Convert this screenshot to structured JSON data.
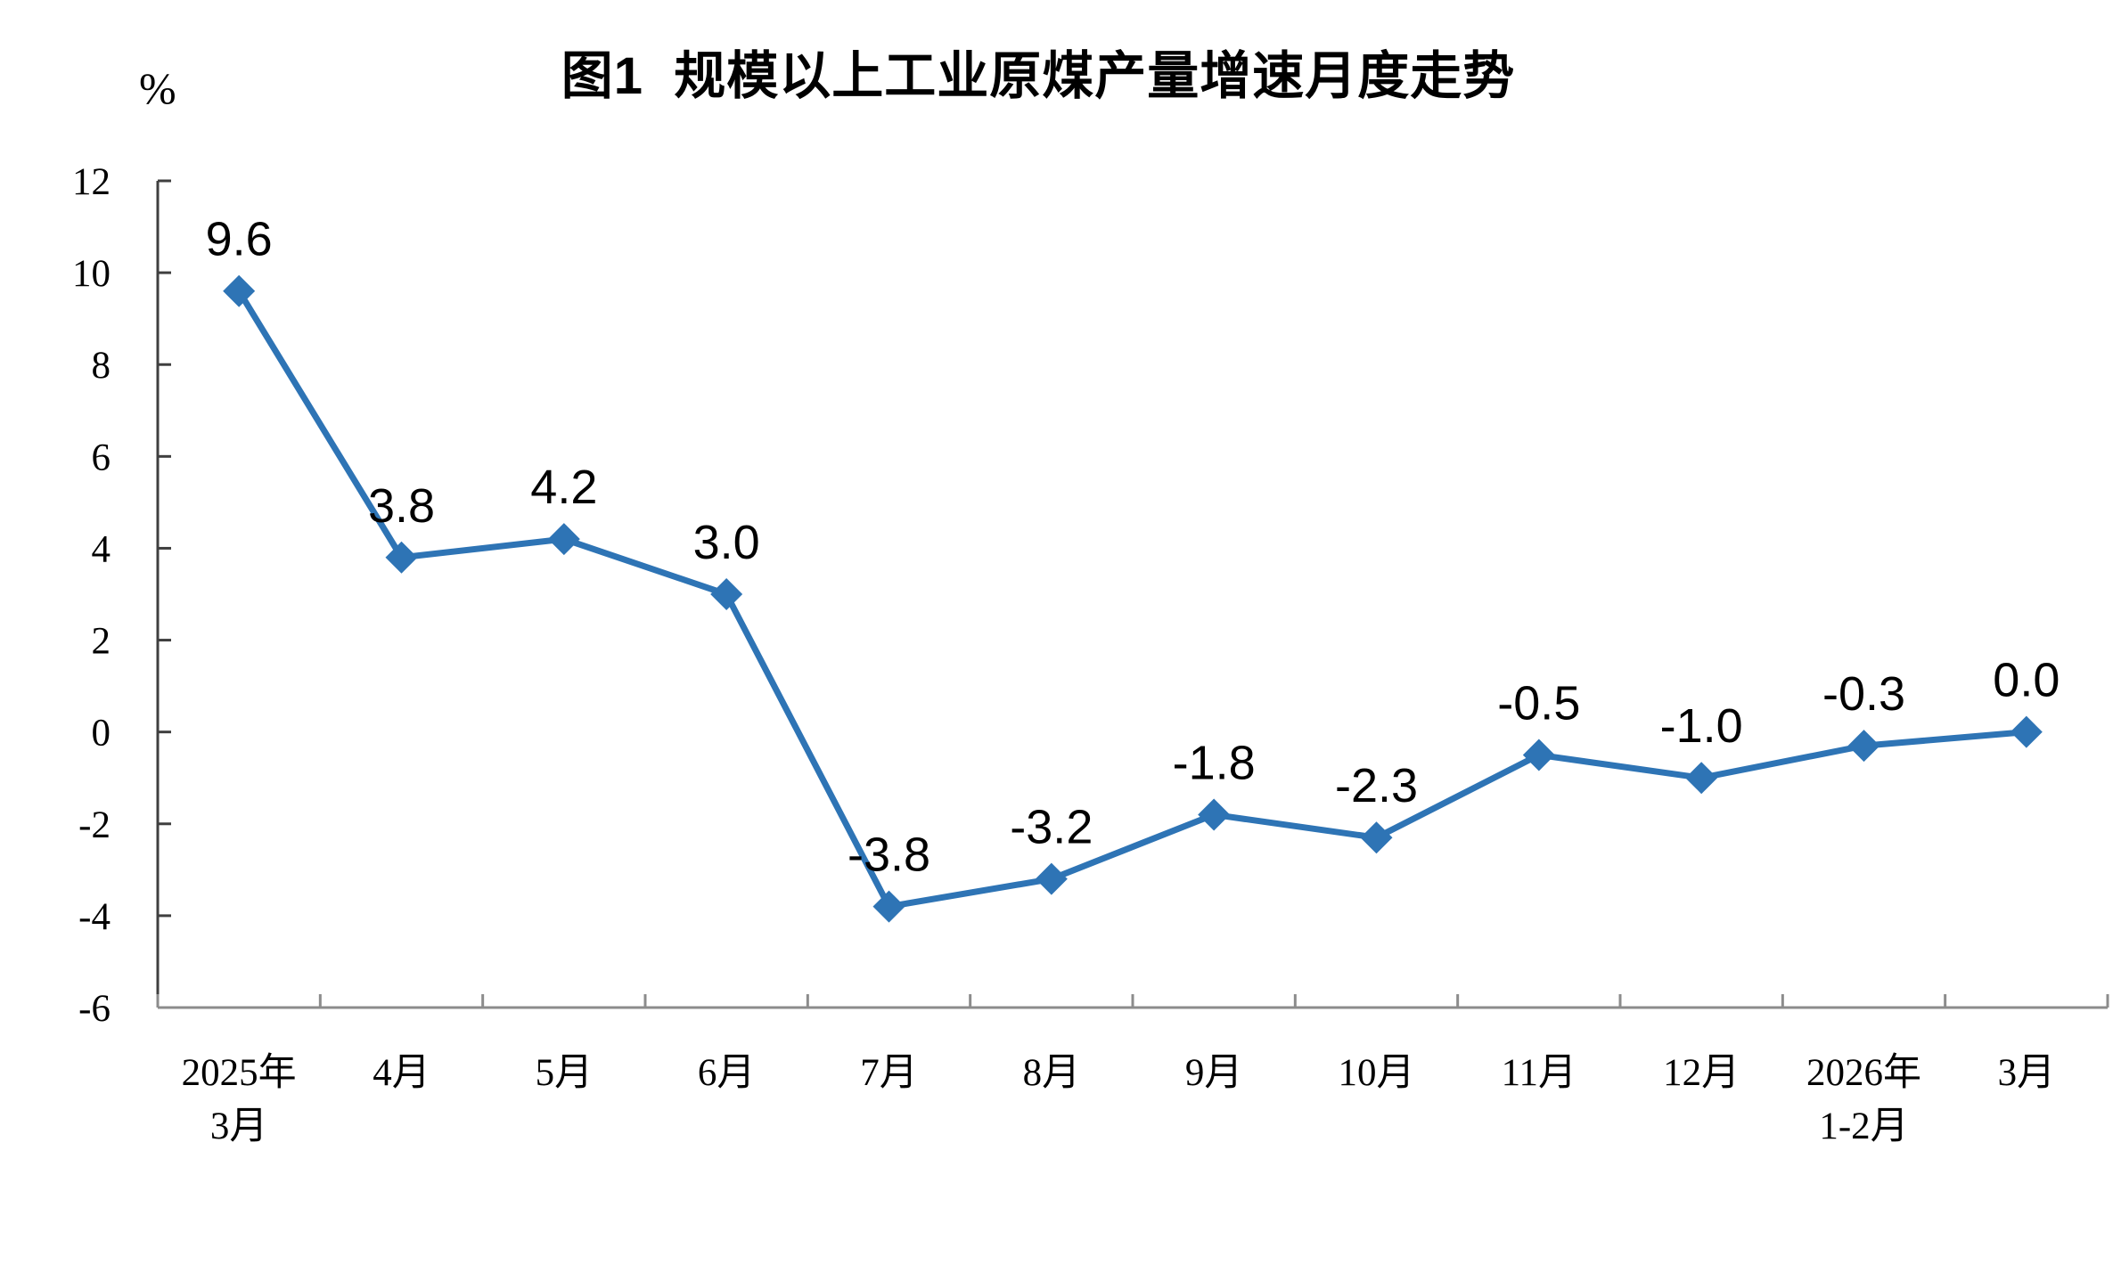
{
  "chart_data": {
    "type": "line",
    "title": "图1  规模以上工业原煤产量增速月度走势",
    "unit_label": "%",
    "categories": [
      [
        "2025年",
        "3月"
      ],
      [
        "4月"
      ],
      [
        "5月"
      ],
      [
        "6月"
      ],
      [
        "7月"
      ],
      [
        "8月"
      ],
      [
        "9月"
      ],
      [
        "10月"
      ],
      [
        "11月"
      ],
      [
        "12月"
      ],
      [
        "2026年",
        "1-2月"
      ],
      [
        "3月"
      ]
    ],
    "series": [
      {
        "name": "规模以上工业原煤产量增速",
        "values": [
          9.6,
          3.8,
          4.2,
          3.0,
          -3.8,
          -3.2,
          -1.8,
          -2.3,
          -0.5,
          -1.0,
          -0.3,
          0.0
        ],
        "data_labels": [
          "9.6",
          "3.8",
          "4.2",
          "3.0",
          "-3.8",
          "-3.2",
          "-1.8",
          "-2.3",
          "-0.5",
          "-1.0",
          "-0.3",
          "0.0"
        ]
      }
    ],
    "yticks": [
      12,
      10,
      8,
      6,
      4,
      2,
      0,
      -2,
      -4,
      -6
    ],
    "ylim": [
      -6,
      12
    ],
    "xlabel": "",
    "ylabel": "%",
    "grid": false,
    "legend_position": "none",
    "data_label_position": "above",
    "marker": "diamond",
    "line_color": "#2E74B5",
    "marker_color": "#2E74B5",
    "y_axis_color": "#3f3f3f",
    "x_axis_color": "#8c8c8c",
    "label_color": "#000000"
  }
}
